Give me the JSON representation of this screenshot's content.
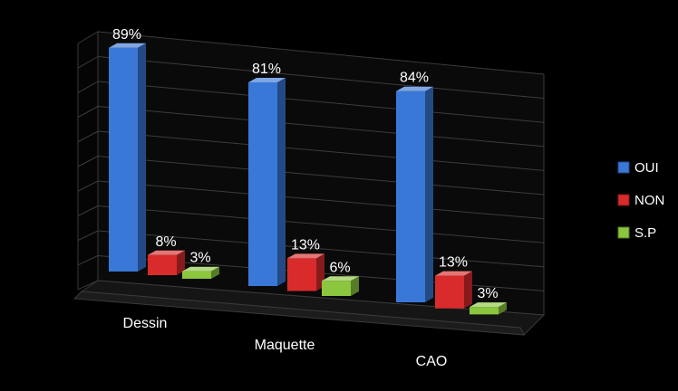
{
  "chart_data": {
    "type": "bar",
    "style": "3d-clustered-column",
    "categories": [
      "Dessin",
      "Maquette",
      "CAO"
    ],
    "series": [
      {
        "name": "OUI",
        "values": [
          89,
          81,
          84
        ],
        "labels": [
          "89%",
          "81%",
          "84%"
        ],
        "color": "#3a78d8"
      },
      {
        "name": "NON",
        "values": [
          8,
          13,
          13
        ],
        "labels": [
          "8%",
          "13%",
          "13%"
        ],
        "color": "#d92b2b"
      },
      {
        "name": "S.P",
        "values": [
          3,
          6,
          3
        ],
        "labels": [
          "3%",
          "6%",
          "3%"
        ],
        "color": "#8cc63f"
      }
    ],
    "unit": "%",
    "ylim": [
      0,
      90
    ],
    "legend": "right",
    "grid": true,
    "background": "#000000"
  }
}
